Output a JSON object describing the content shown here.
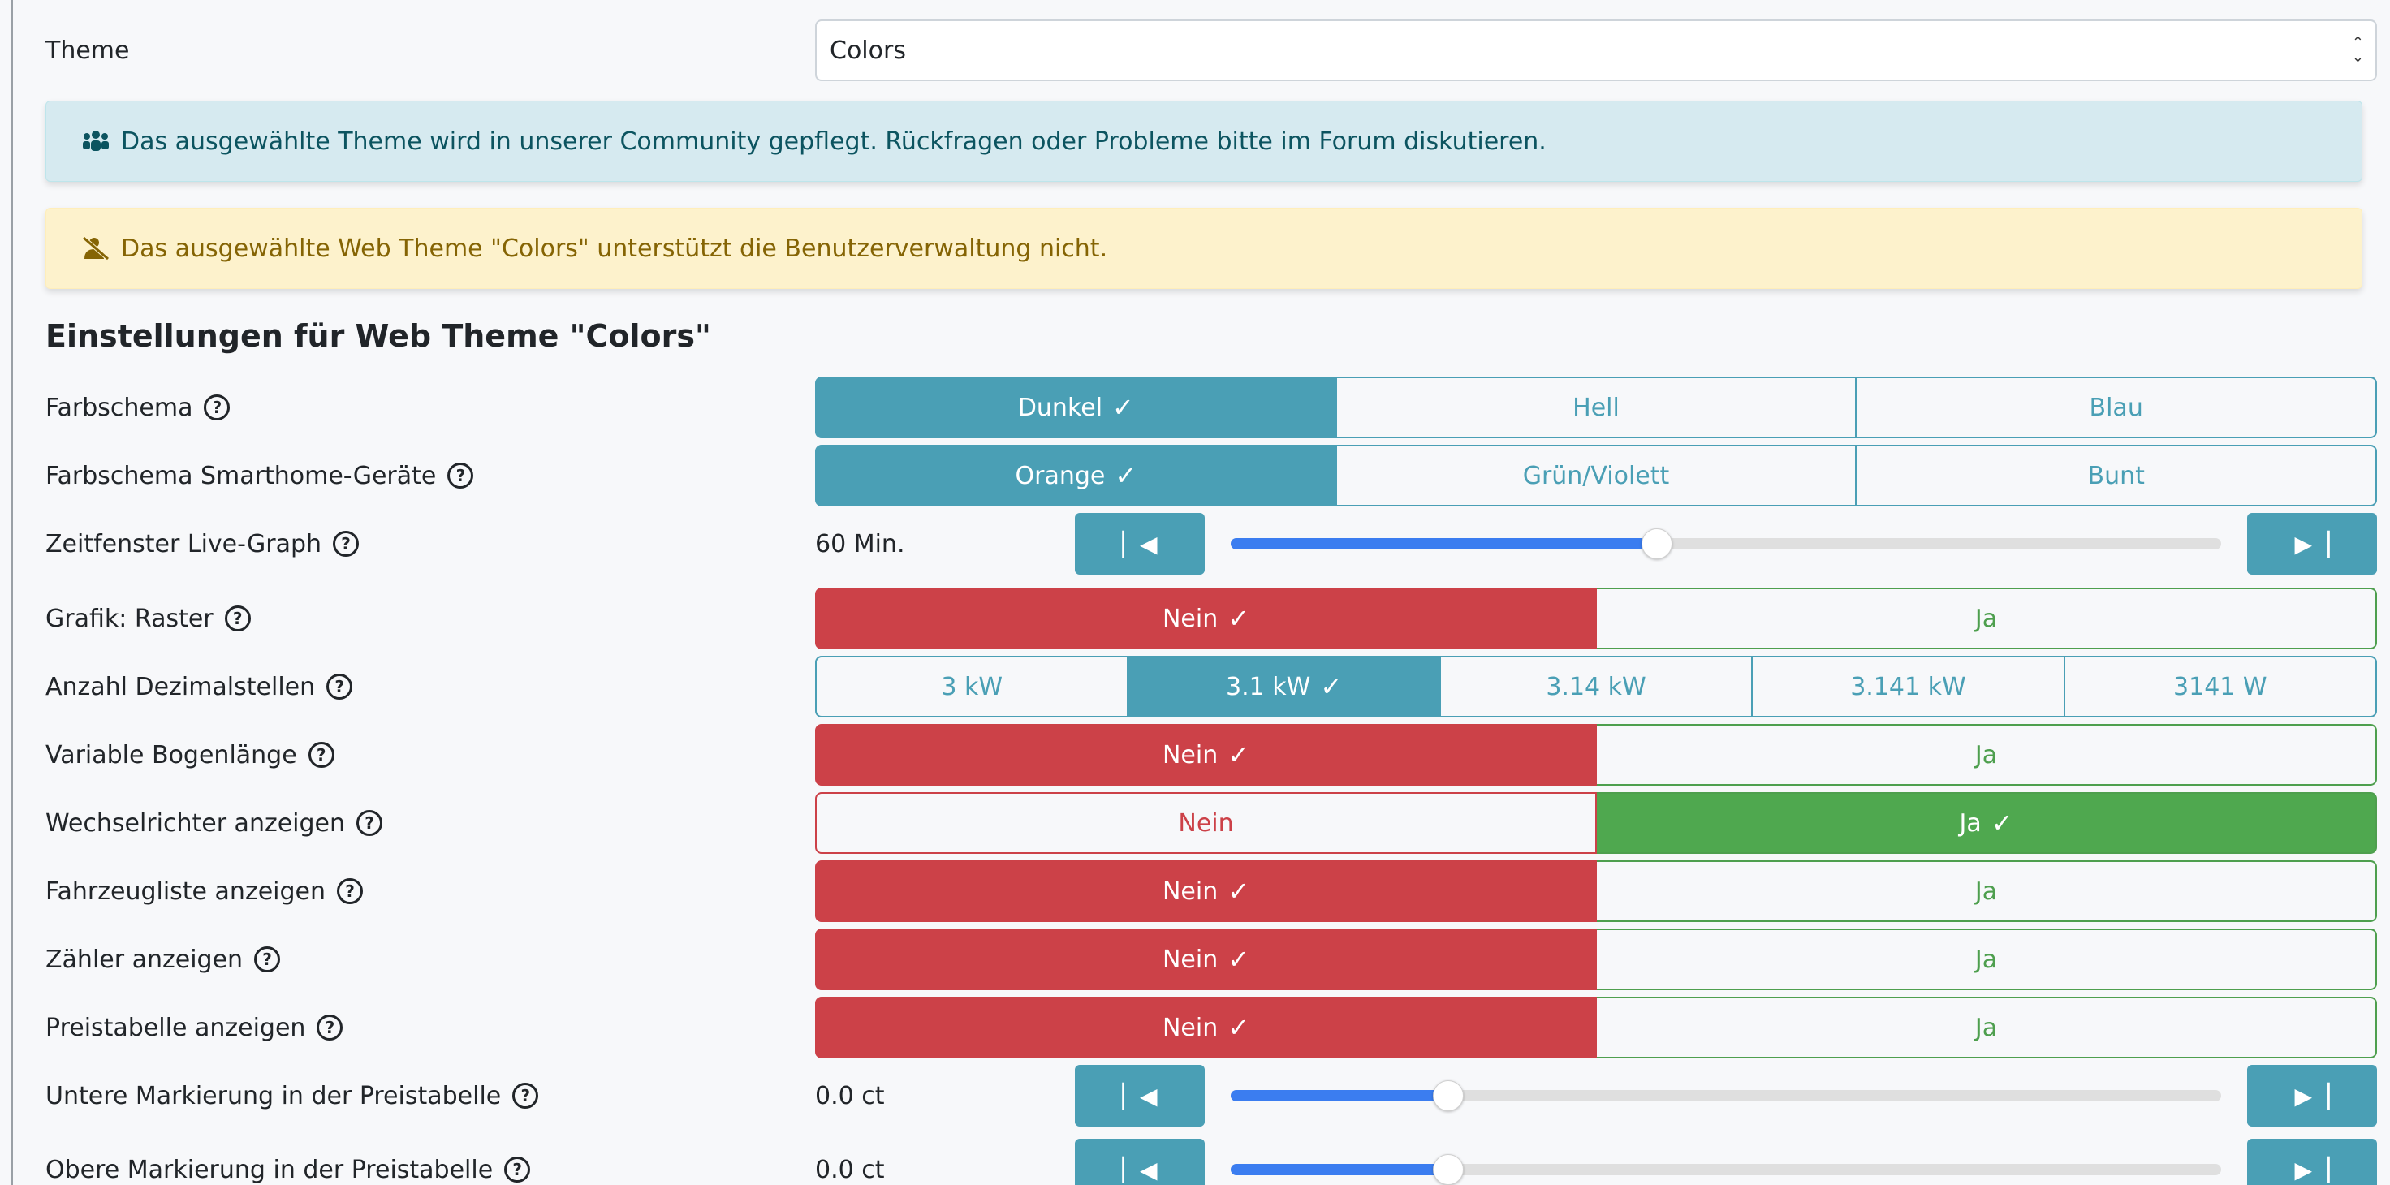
{
  "theme": {
    "label": "Theme",
    "selected": "Colors"
  },
  "alerts": {
    "info": "Das ausgewählte Theme wird in unserer Community gepflegt. Rückfragen oder Probleme bitte im Forum diskutieren.",
    "warning": "Das ausgewählte Web Theme \"Colors\" unterstützt die Benutzerverwaltung nicht."
  },
  "section_title": "Einstellungen für Web Theme \"Colors\"",
  "settings": {
    "farbschema": {
      "label": "Farbschema",
      "options": [
        "Dunkel",
        "Hell",
        "Blau"
      ],
      "selected": 0
    },
    "farbschema_smarthome": {
      "label": "Farbschema Smarthome-Geräte",
      "options": [
        "Orange",
        "Grün/Violett",
        "Bunt"
      ],
      "selected": 0
    },
    "zeitfenster": {
      "label": "Zeitfenster Live-Graph",
      "value": "60 Min.",
      "slider_fraction": 0.43
    },
    "grafik_raster": {
      "label": "Grafik: Raster",
      "no": "Nein",
      "yes": "Ja",
      "selected": "no"
    },
    "dezimalstellen": {
      "label": "Anzahl Dezimalstellen",
      "options": [
        "3 kW",
        "3.1 kW",
        "3.14 kW",
        "3.141 kW",
        "3141 W"
      ],
      "selected": 1
    },
    "bogenlaenge": {
      "label": "Variable Bogenlänge",
      "no": "Nein",
      "yes": "Ja",
      "selected": "no"
    },
    "wechselrichter": {
      "label": "Wechselrichter anzeigen",
      "no": "Nein",
      "yes": "Ja",
      "selected": "yes"
    },
    "fahrzeugliste": {
      "label": "Fahrzeugliste anzeigen",
      "no": "Nein",
      "yes": "Ja",
      "selected": "no"
    },
    "zaehler": {
      "label": "Zähler anzeigen",
      "no": "Nein",
      "yes": "Ja",
      "selected": "no"
    },
    "preistabelle": {
      "label": "Preistabelle anzeigen",
      "no": "Nein",
      "yes": "Ja",
      "selected": "no"
    },
    "untere_markierung": {
      "label": "Untere Markierung in der Preistabelle",
      "value": "0.0 ct",
      "slider_fraction": 0.22
    },
    "obere_markierung": {
      "label": "Obere Markierung in der Preistabelle",
      "value": "0.0 ct",
      "slider_fraction": 0.22
    }
  },
  "colors": {
    "info": "#4a9fb5",
    "danger": "#cc4148",
    "success": "#4fa84f",
    "slider": "#3b7df0"
  },
  "icons": {
    "community": "users-icon",
    "no_user_mgmt": "user-slash-icon",
    "check": "check-icon",
    "help": "question-circle-icon",
    "step_back": "step-backward-icon",
    "step_forward": "step-forward-icon"
  }
}
